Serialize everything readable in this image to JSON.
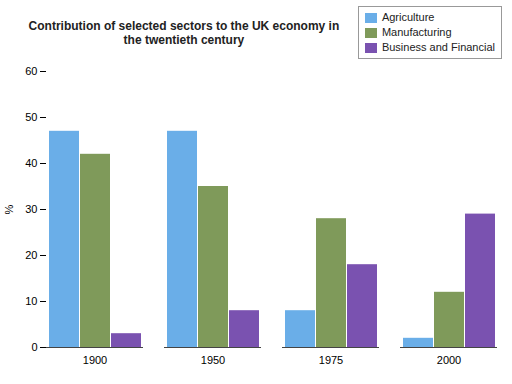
{
  "chart_data": {
    "type": "bar",
    "title": "Contribution of selected sectors to the UK economy in the twentieth century",
    "categories": [
      "1900",
      "1950",
      "1975",
      "2000"
    ],
    "series": [
      {
        "name": "Agriculture",
        "color": "#6aaee8",
        "values": [
          47,
          47,
          8,
          2
        ]
      },
      {
        "name": "Manufacturing",
        "color": "#7f9a5a",
        "values": [
          42,
          35,
          28,
          12
        ]
      },
      {
        "name": "Business and Financial",
        "color": "#7a52b0",
        "values": [
          3,
          8,
          18,
          29
        ]
      }
    ],
    "y_label": "%",
    "ylim": [
      0,
      60
    ],
    "yticks": [
      0,
      10,
      20,
      30,
      40,
      50,
      60
    ],
    "grid": false,
    "legend": "top-right"
  }
}
